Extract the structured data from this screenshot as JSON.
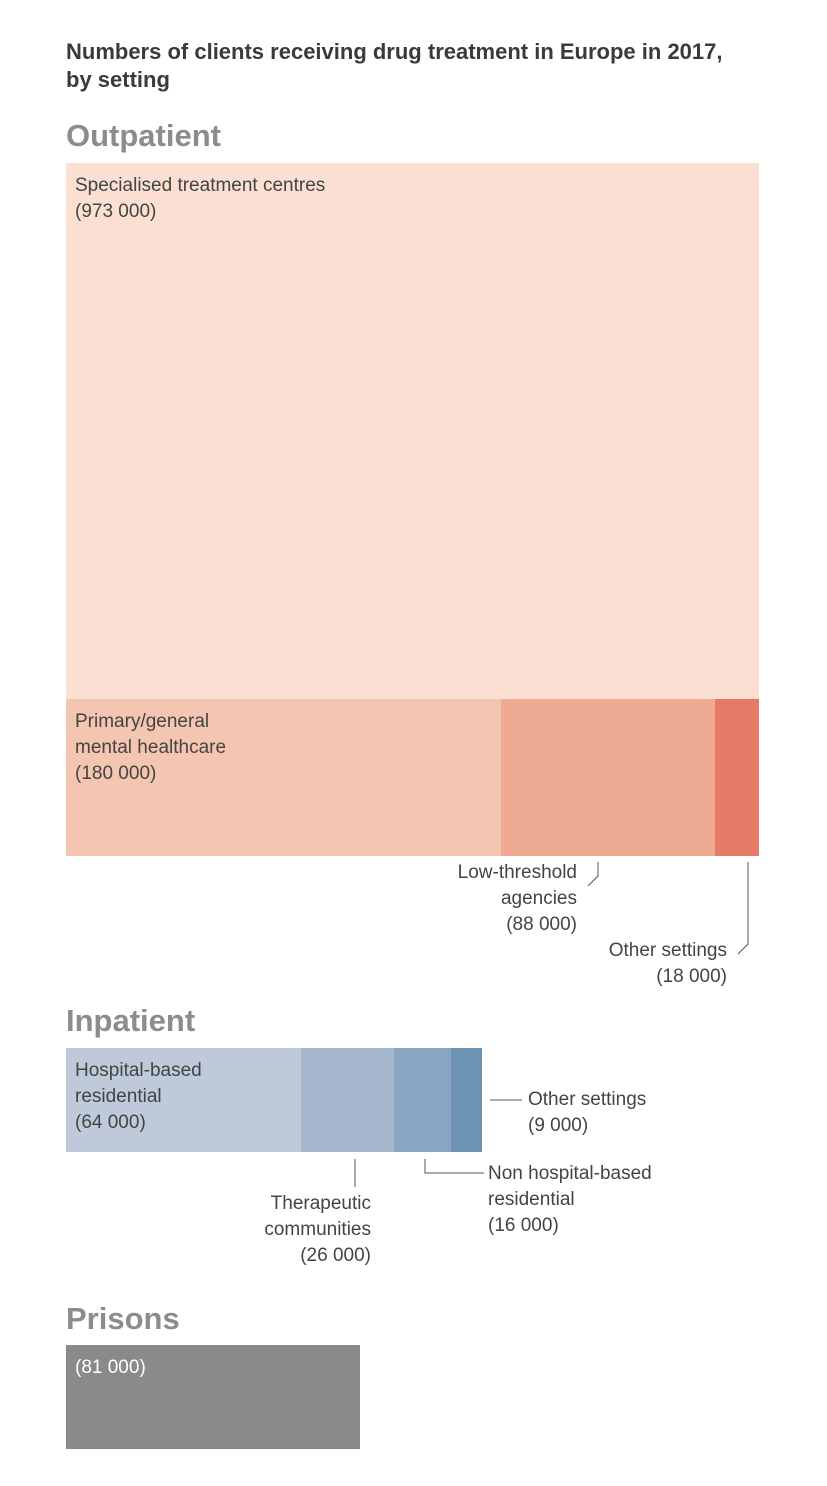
{
  "chart_data": {
    "type": "treemap",
    "title_line1": "Numbers of clients receiving drug treatment in Europe in 2017,",
    "title_line2": "by setting",
    "groups": [
      {
        "name": "Outpatient",
        "items": [
          {
            "name": "Specialised treatment centres",
            "name_lines": [
              "Specialised treatment centres"
            ],
            "value": 973000,
            "value_label": "(973 000)",
            "color": "#fadfd2"
          },
          {
            "name": "Primary/general mental healthcare",
            "name_lines": [
              "Primary/general",
              "mental healthcare"
            ],
            "value": 180000,
            "value_label": "(180 000)",
            "color": "#f4c5b0"
          },
          {
            "name": "Low-threshold agencies",
            "name_lines": [
              "Low-threshold",
              "agencies"
            ],
            "value": 88000,
            "value_label": "(88 000)",
            "color": "#eeaa92"
          },
          {
            "name": "Other settings",
            "name_lines": [
              "Other settings"
            ],
            "value": 18000,
            "value_label": "(18 000)",
            "color": "#e57a66"
          }
        ]
      },
      {
        "name": "Inpatient",
        "items": [
          {
            "name": "Hospital-based residential",
            "name_lines": [
              "Hospital-based",
              "residential"
            ],
            "value": 64000,
            "value_label": "(64 000)",
            "color": "#bec9da"
          },
          {
            "name": "Therapeutic communities",
            "name_lines": [
              "Therapeutic",
              "communities"
            ],
            "value": 26000,
            "value_label": "(26 000)",
            "color": "#a6b8ce"
          },
          {
            "name": "Non hospital-based residential",
            "name_lines": [
              "Non hospital-based",
              "residential"
            ],
            "value": 16000,
            "value_label": "(16 000)",
            "color": "#88a6c1"
          },
          {
            "name": "Other settings",
            "name_lines": [
              "Other settings"
            ],
            "value": 9000,
            "value_label": "(9 000)",
            "color": "#6c93b1"
          }
        ]
      },
      {
        "name": "Prisons",
        "items": [
          {
            "name": "Prisons",
            "value": 81000,
            "value_label": "(81 000)",
            "color": "#8a8a8a"
          }
        ]
      }
    ]
  }
}
